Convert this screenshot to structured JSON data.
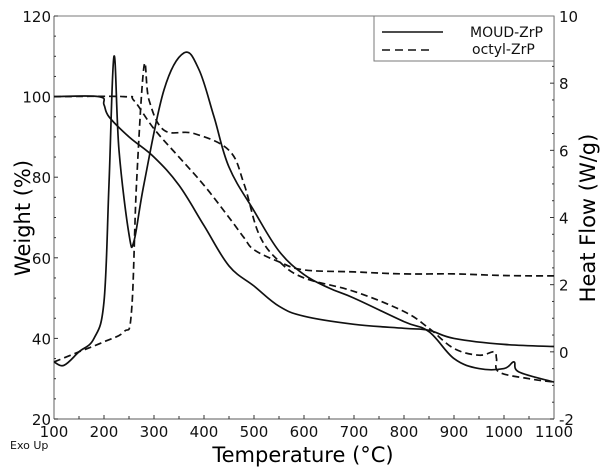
{
  "chart_data": {
    "type": "line",
    "title": "",
    "xlabel": "Temperature (°C)",
    "ylabel": "Weight (%)",
    "y2label": "Heat Flow (W/g)",
    "xlim": [
      100,
      1100
    ],
    "ylim": [
      20,
      120
    ],
    "y2lim": [
      -2,
      10
    ],
    "x_ticks": [
      100,
      200,
      300,
      400,
      500,
      600,
      700,
      800,
      900,
      1000,
      1100
    ],
    "y_ticks": [
      20,
      40,
      60,
      80,
      100,
      120
    ],
    "y2_ticks": [
      -2,
      0,
      2,
      4,
      6,
      8,
      10
    ],
    "grid": false,
    "legend_position": "upper right",
    "annotation": "Exo Up",
    "series": [
      {
        "name": "MOUD-ZrP weight",
        "legend": "MOUD-ZrP",
        "axis": "left",
        "style": "solid",
        "x": [
          100,
          190,
          200,
          210,
          250,
          300,
          350,
          400,
          450,
          500,
          550,
          600,
          700,
          800,
          850,
          900,
          1000,
          1100
        ],
        "y": [
          100,
          100,
          98,
          95,
          90,
          85,
          78,
          68,
          58,
          53,
          48,
          45.5,
          43.5,
          42.5,
          42,
          40,
          38.5,
          38
        ]
      },
      {
        "name": "octyl-ZrP weight",
        "legend": "octyl-ZrP",
        "axis": "left",
        "style": "dashed",
        "x": [
          100,
          240,
          260,
          300,
          350,
          400,
          450,
          480,
          500,
          550,
          600,
          700,
          800,
          900,
          1000,
          1100
        ],
        "y": [
          100,
          100,
          99,
          92,
          85,
          78,
          70,
          65,
          62,
          59,
          57,
          56.5,
          56,
          56,
          55.6,
          55.5
        ]
      },
      {
        "name": "MOUD-ZrP heat flow",
        "legend": "MOUD-ZrP",
        "axis": "right",
        "style": "solid",
        "x": [
          100,
          120,
          150,
          180,
          200,
          210,
          220,
          230,
          250,
          260,
          280,
          320,
          360,
          390,
          420,
          450,
          500,
          550,
          600,
          650,
          700,
          800,
          850,
          900,
          950,
          1000,
          1020,
          1030,
          1100
        ],
        "y": [
          -0.3,
          -0.4,
          0,
          0.4,
          1.5,
          5,
          8.8,
          6,
          3.5,
          3.3,
          5,
          7.8,
          8.9,
          8.4,
          7,
          5.5,
          4.2,
          3,
          2.3,
          1.9,
          1.6,
          0.9,
          0.6,
          -0.2,
          -0.5,
          -0.5,
          -0.3,
          -0.6,
          -0.9
        ]
      },
      {
        "name": "octyl-ZrP heat flow",
        "legend": "octyl-ZrP",
        "axis": "right",
        "style": "dashed",
        "x": [
          100,
          150,
          200,
          240,
          255,
          265,
          280,
          290,
          320,
          380,
          450,
          480,
          510,
          550,
          600,
          700,
          800,
          850,
          900,
          950,
          980,
          985,
          990,
          1050,
          1100
        ],
        "y": [
          -0.3,
          0,
          0.3,
          0.6,
          1.2,
          5,
          8.5,
          7.5,
          6.6,
          6.5,
          6,
          5,
          3.5,
          2.7,
          2.2,
          1.8,
          1.2,
          0.7,
          0.1,
          -0.1,
          0,
          -0.2,
          -0.6,
          -0.8,
          -0.9
        ]
      }
    ]
  },
  "legend": {
    "items": [
      {
        "label": "MOUD-ZrP",
        "style": "solid"
      },
      {
        "label": "octyl-ZrP",
        "style": "dashed"
      }
    ]
  },
  "colors": {
    "line": "#111111",
    "axis": "#7a7a7a"
  }
}
